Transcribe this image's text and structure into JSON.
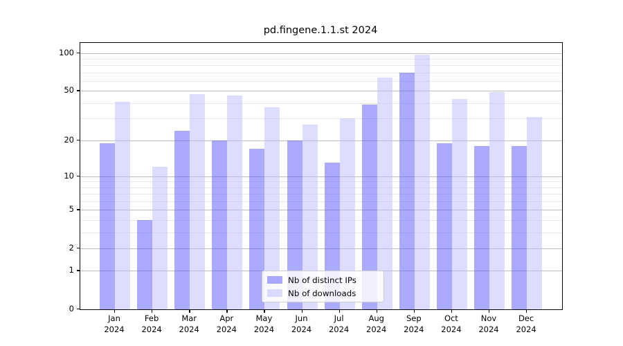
{
  "title": "pd.fingene.1.1.st 2024",
  "chart_data": {
    "type": "bar",
    "title": "pd.fingene.1.1.st 2024",
    "categories": [
      "Jan 2024",
      "Feb 2024",
      "Mar 2024",
      "Apr 2024",
      "May 2024",
      "Jun 2024",
      "Jul 2024",
      "Aug 2024",
      "Sep 2024",
      "Oct 2024",
      "Nov 2024",
      "Dec 2024"
    ],
    "series": [
      {
        "name": "Nb of distinct IPs",
        "color": "#aaaaff",
        "values": [
          19,
          4,
          24,
          20,
          17,
          20,
          13,
          39,
          70,
          19,
          18,
          18
        ]
      },
      {
        "name": "Nb of downloads",
        "color": "#ddddff",
        "values": [
          41,
          12,
          47,
          46,
          37,
          27,
          30,
          64,
          97,
          43,
          49,
          31
        ]
      }
    ],
    "y_scale": "log10(1+value)",
    "y_ticks_labeled": [
      0,
      1,
      2,
      5,
      10,
      20,
      50,
      100
    ],
    "y_ticks_minor": [
      3,
      4,
      6,
      7,
      8,
      9,
      30,
      40,
      60,
      70,
      80,
      90
    ],
    "ylim": [
      0,
      121
    ],
    "xlabel": "",
    "ylabel": "",
    "grid": true,
    "legend_position": "bottom-center"
  },
  "legend": {
    "entries": [
      {
        "label": "Nb of distinct IPs"
      },
      {
        "label": "Nb of downloads"
      }
    ]
  },
  "colors": {
    "bar_distinct_ips": "#aaaaff",
    "bar_downloads": "#ddddff",
    "grid_major": "#bdbdbd",
    "grid_minor": "#e7e7e7",
    "axis": "#000000",
    "legend_border": "#cccccc"
  }
}
